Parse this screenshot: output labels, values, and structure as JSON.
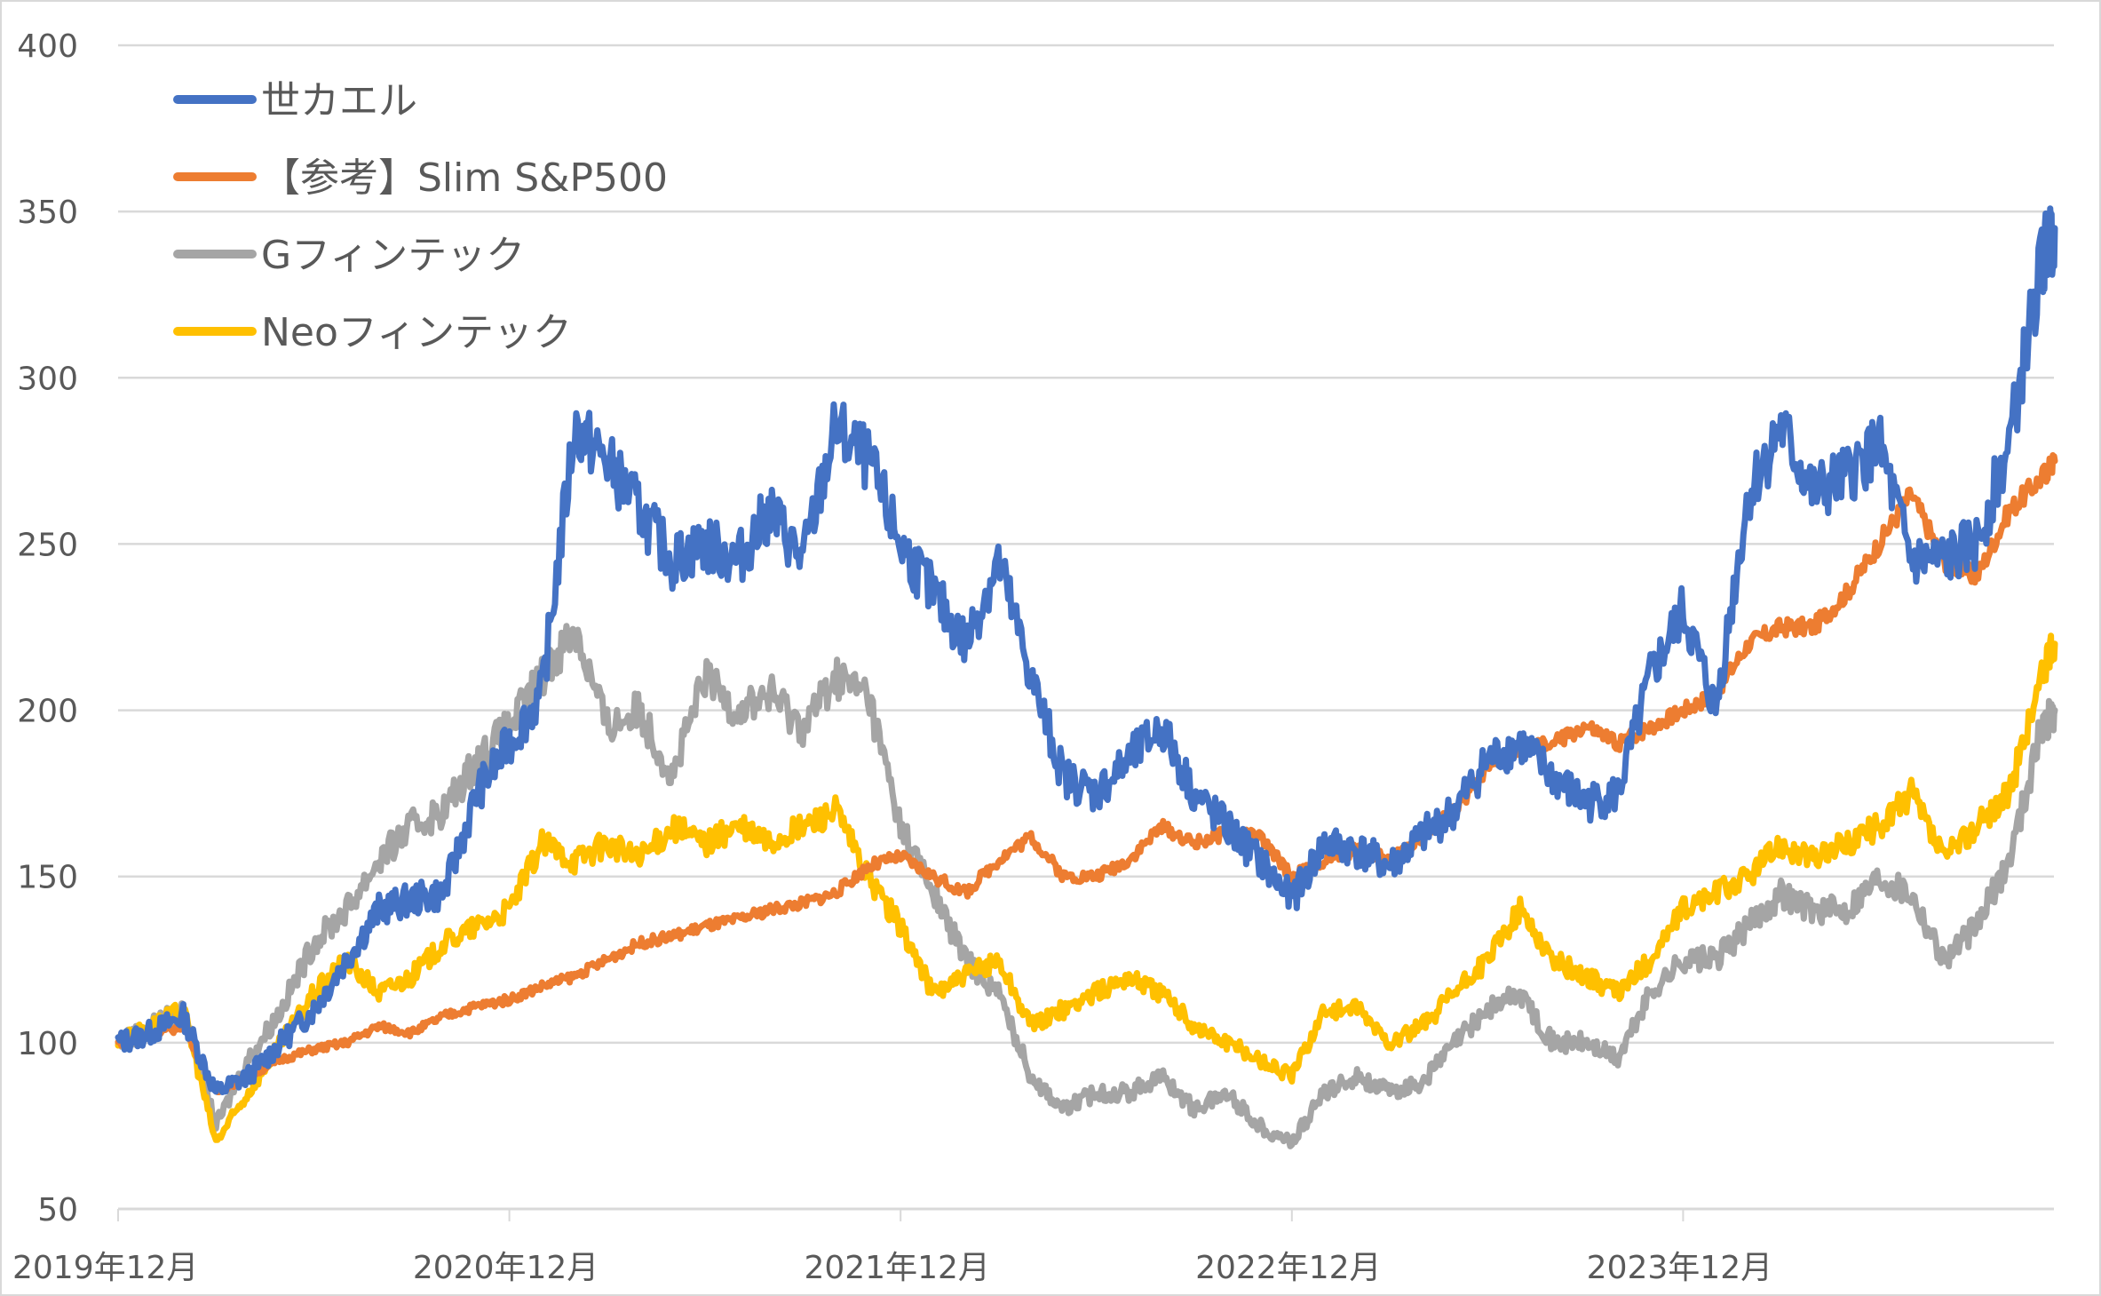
{
  "chart_data": {
    "type": "line",
    "title": "",
    "xlabel": "",
    "ylabel": "",
    "ylim": [
      50,
      400
    ],
    "yticks": [
      "50",
      "100",
      "150",
      "200",
      "250",
      "300",
      "350",
      "400"
    ],
    "xticks": [
      "2019年12月",
      "2020年12月",
      "2021年12月",
      "2022年12月",
      "2023年12月"
    ],
    "x_unit": "months since 2019年12月",
    "x_max": 59.4,
    "grid": "horizontal",
    "legend_placement": "top-left",
    "series": [
      {
        "name": "世カエル",
        "color": "#4472C4",
        "values": [
          100,
          103,
          108,
          85,
          90,
          100,
          110,
          125,
          140,
          143,
          145,
          175,
          190,
          205,
          285,
          275,
          260,
          245,
          250,
          245,
          260,
          245,
          285,
          275,
          250,
          235,
          220,
          245,
          210,
          180,
          175,
          185,
          195,
          175,
          165,
          155,
          143,
          160,
          158,
          153,
          162,
          170,
          185,
          190,
          180,
          172,
          175,
          210,
          230,
          200,
          265,
          285,
          265,
          270,
          280,
          245,
          245,
          250,
          280,
          335,
          345
        ]
      },
      {
        "name": "【参考】Slim S&P500",
        "color": "#ED7D31",
        "values": [
          100,
          102,
          105,
          85,
          90,
          95,
          98,
          100,
          105,
          103,
          108,
          111,
          113,
          117,
          120,
          125,
          130,
          132,
          135,
          137,
          140,
          142,
          145,
          153,
          156,
          150,
          145,
          155,
          162,
          150,
          150,
          155,
          165,
          160,
          163,
          162,
          150,
          155,
          158,
          155,
          162,
          170,
          182,
          188,
          190,
          195,
          190,
          195,
          200,
          205,
          220,
          225,
          225,
          235,
          250,
          265,
          245,
          240,
          260,
          270,
          275
        ]
      },
      {
        "name": "Gフィンテック",
        "color": "#A5A5A5",
        "values": [
          100,
          105,
          110,
          75,
          95,
          110,
          130,
          140,
          155,
          165,
          170,
          185,
          195,
          210,
          225,
          195,
          200,
          180,
          210,
          200,
          205,
          195,
          210,
          205,
          165,
          145,
          125,
          115,
          90,
          80,
          85,
          85,
          90,
          80,
          85,
          75,
          70,
          85,
          90,
          85,
          88,
          100,
          110,
          115,
          100,
          100,
          95,
          115,
          125,
          125,
          135,
          145,
          140,
          140,
          150,
          145,
          125,
          135,
          155,
          195,
          200
        ]
      },
      {
        "name": "Neoフィンテック",
        "color": "#FFC000",
        "values": [
          100,
          105,
          110,
          70,
          85,
          100,
          115,
          125,
          115,
          120,
          130,
          135,
          140,
          160,
          155,
          160,
          155,
          165,
          160,
          165,
          160,
          165,
          170,
          150,
          135,
          115,
          120,
          125,
          105,
          110,
          115,
          120,
          115,
          105,
          100,
          95,
          90,
          110,
          110,
          100,
          105,
          115,
          125,
          140,
          125,
          120,
          115,
          125,
          140,
          145,
          150,
          160,
          155,
          160,
          165,
          175,
          155,
          165,
          175,
          210,
          220
        ]
      }
    ]
  }
}
